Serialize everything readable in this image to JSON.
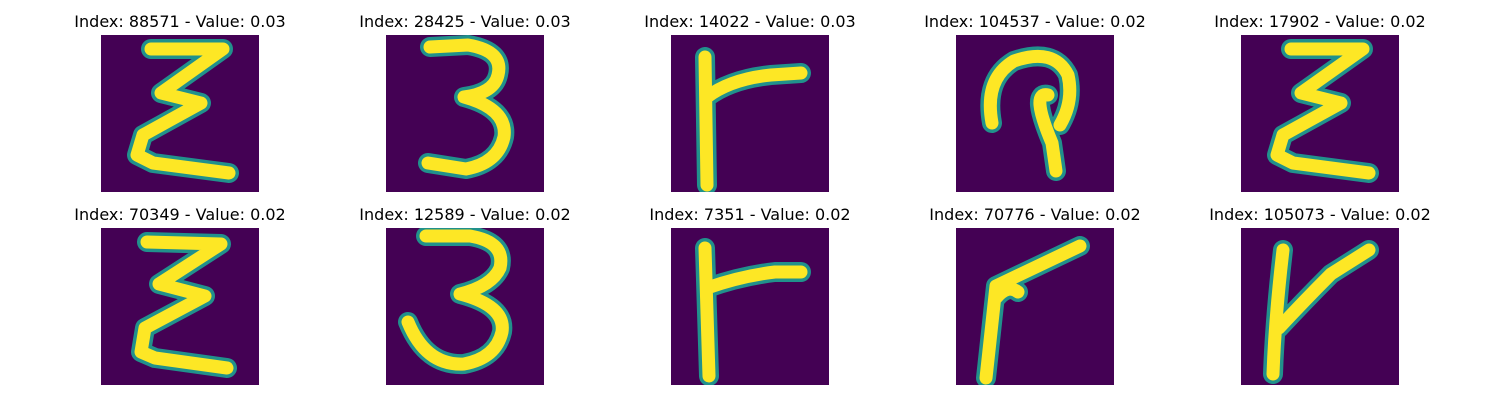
{
  "panels": [
    {
      "title": "Index: 88571 - Value: 0.03",
      "glyph": "zigzag-e"
    },
    {
      "title": "Index: 28425 - Value: 0.03",
      "glyph": "three"
    },
    {
      "title": "Index: 14022 - Value: 0.03",
      "glyph": "stem-bar"
    },
    {
      "title": "Index: 104537 - Value: 0.02",
      "glyph": "loop"
    },
    {
      "title": "Index: 17902 - Value: 0.02",
      "glyph": "zigzag-e"
    },
    {
      "title": "Index: 70349 - Value: 0.02",
      "glyph": "zigzag-e"
    },
    {
      "title": "Index: 12589 - Value: 0.02",
      "glyph": "three"
    },
    {
      "title": "Index: 7351 - Value: 0.02",
      "glyph": "stem-bar"
    },
    {
      "title": "Index: 70776 - Value: 0.02",
      "glyph": "angle"
    },
    {
      "title": "Index: 105073 - Value: 0.02",
      "glyph": "stem-diag"
    }
  ],
  "colors": {
    "background": "#440154",
    "stroke": "#fde725",
    "edge": "#21918c"
  }
}
